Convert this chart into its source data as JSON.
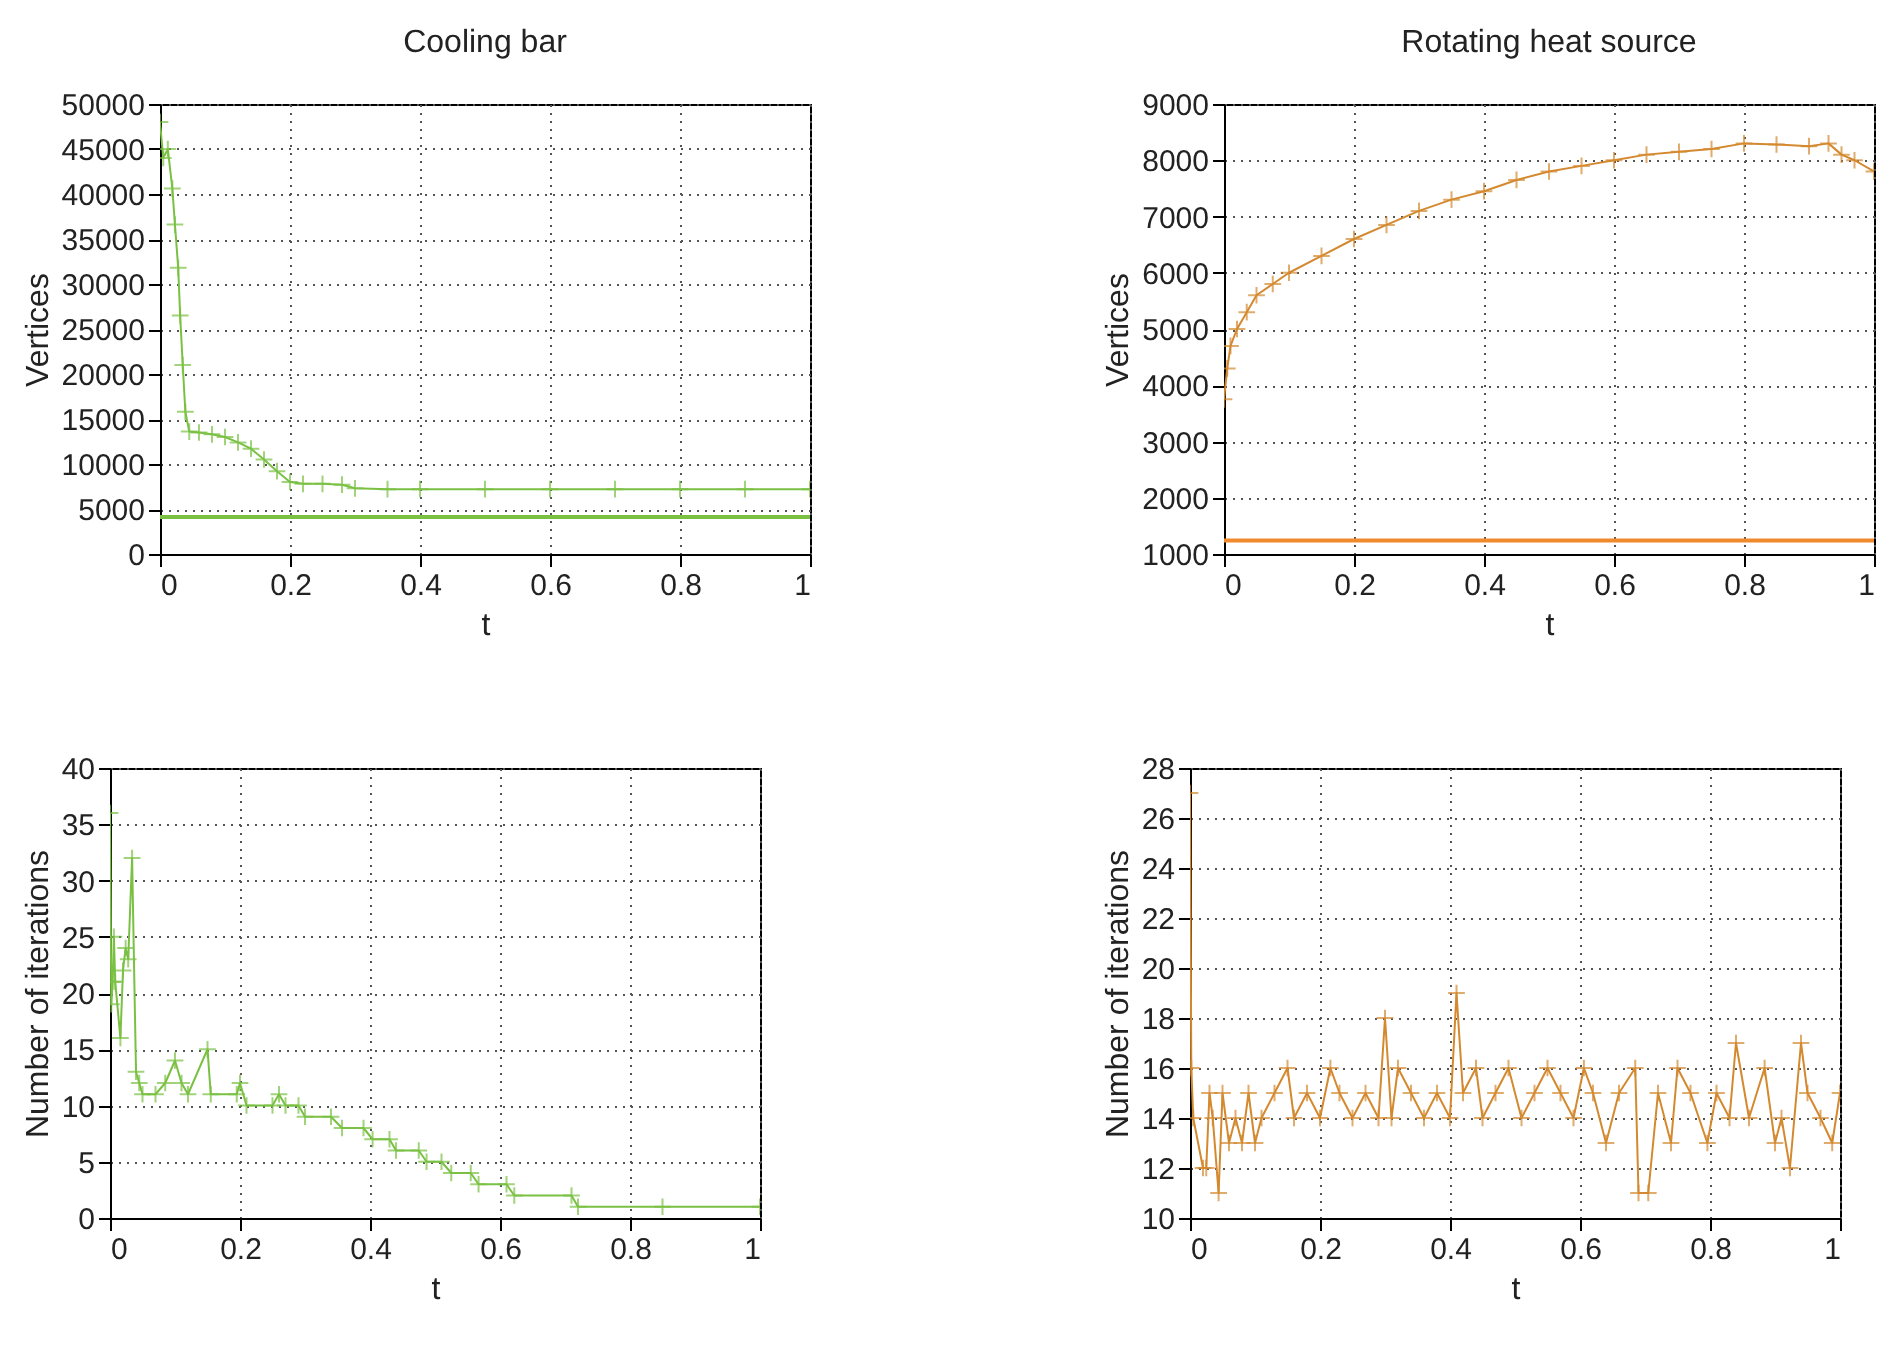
{
  "chart_data": [
    {
      "type": "line",
      "title": "Cooling bar",
      "xlabel": "t",
      "ylabel": "Vertices",
      "marker": "cross",
      "grid": true,
      "x": [
        0,
        0.005,
        0.012,
        0.019,
        0.023,
        0.028,
        0.031,
        0.035,
        0.039,
        0.045,
        0.06,
        0.08,
        0.1,
        0.12,
        0.14,
        0.16,
        0.18,
        0.2,
        0.22,
        0.25,
        0.28,
        0.3,
        0.35,
        0.4,
        0.5,
        0.6,
        0.7,
        0.8,
        0.9,
        1
      ],
      "series": [
        {
          "color": "#7ac143",
          "values": [
            48000,
            44000,
            45000,
            40600,
            36600,
            31800,
            26500,
            21000,
            15800,
            13600,
            13500,
            13300,
            13000,
            12400,
            11700,
            10500,
            9200,
            8000,
            7800,
            7800,
            7700,
            7300,
            7200,
            7200,
            7200,
            7200,
            7200,
            7200,
            7200,
            7200
          ]
        }
      ],
      "ref_lines": [
        {
          "axis": "y",
          "value": 4100,
          "color": "#7ac143"
        }
      ],
      "xlim": [
        0,
        1
      ],
      "xticks": [
        0,
        0.2,
        0.4,
        0.6,
        0.8,
        1
      ],
      "ylim": [
        0,
        50000
      ],
      "yticks": [
        0,
        5000,
        10000,
        15000,
        20000,
        25000,
        30000,
        35000,
        40000,
        45000,
        50000
      ]
    },
    {
      "type": "line",
      "title": "Rotating heat source",
      "xlabel": "t",
      "ylabel": "Vertices",
      "marker": "cross",
      "grid": true,
      "x": [
        0,
        0.005,
        0.01,
        0.02,
        0.035,
        0.05,
        0.075,
        0.1,
        0.15,
        0.2,
        0.25,
        0.3,
        0.35,
        0.4,
        0.45,
        0.5,
        0.55,
        0.6,
        0.65,
        0.7,
        0.75,
        0.8,
        0.85,
        0.9,
        0.93,
        0.95,
        0.97,
        1
      ],
      "series": [
        {
          "color": "#d4892f",
          "values": [
            3750,
            4300,
            4700,
            5000,
            5300,
            5600,
            5800,
            6000,
            6300,
            6600,
            6850,
            7100,
            7300,
            7450,
            7650,
            7800,
            7900,
            8000,
            8100,
            8150,
            8200,
            8300,
            8280,
            8250,
            8300,
            8100,
            8000,
            7800
          ]
        }
      ],
      "ref_lines": [
        {
          "axis": "y",
          "value": 1240,
          "color": "#f08a2c"
        }
      ],
      "xlim": [
        0,
        1
      ],
      "xticks": [
        0,
        0.2,
        0.4,
        0.6,
        0.8,
        1
      ],
      "ylim": [
        1000,
        9000
      ],
      "yticks": [
        1000,
        2000,
        3000,
        4000,
        5000,
        6000,
        7000,
        8000,
        9000
      ]
    },
    {
      "type": "line",
      "xlabel": "t",
      "ylabel": "Number of iterations",
      "marker": "cross",
      "grid": true,
      "x": [
        0,
        0.002,
        0.004,
        0.006,
        0.008,
        0.016,
        0.02,
        0.024,
        0.028,
        0.034,
        0.04,
        0.045,
        0.05,
        0.07,
        0.085,
        0.1,
        0.11,
        0.12,
        0.15,
        0.155,
        0.195,
        0.2,
        0.21,
        0.25,
        0.26,
        0.27,
        0.29,
        0.3,
        0.34,
        0.357,
        0.39,
        0.404,
        0.43,
        0.44,
        0.475,
        0.487,
        0.51,
        0.525,
        0.555,
        0.567,
        0.61,
        0.622,
        0.71,
        0.72,
        0.85,
        1
      ],
      "series": [
        {
          "color": "#7ac143",
          "values": [
            36,
            19,
            21,
            25,
            21,
            16,
            22,
            24,
            23,
            32,
            13,
            12,
            11,
            11,
            12,
            14,
            12,
            11,
            15,
            11,
            11,
            12,
            10,
            10,
            11,
            10,
            10,
            9,
            9,
            8,
            8,
            7,
            7,
            6,
            6,
            5,
            5,
            4,
            4,
            3,
            3,
            2,
            2,
            1,
            1,
            1
          ]
        }
      ],
      "xlim": [
        0,
        1
      ],
      "xticks": [
        0,
        0.2,
        0.4,
        0.6,
        0.8,
        1
      ],
      "ylim": [
        0,
        40
      ],
      "yticks": [
        0,
        5,
        10,
        15,
        20,
        25,
        30,
        35,
        40
      ]
    },
    {
      "type": "line",
      "xlabel": "t",
      "ylabel": "Number of iterations",
      "marker": "cross",
      "grid": true,
      "x": [
        0,
        0.002,
        0.005,
        0.02,
        0.025,
        0.03,
        0.035,
        0.044,
        0.05,
        0.06,
        0.07,
        0.08,
        0.09,
        0.1,
        0.11,
        0.13,
        0.15,
        0.16,
        0.18,
        0.2,
        0.216,
        0.23,
        0.25,
        0.27,
        0.29,
        0.3,
        0.31,
        0.32,
        0.34,
        0.36,
        0.38,
        0.4,
        0.41,
        0.42,
        0.44,
        0.45,
        0.47,
        0.49,
        0.51,
        0.53,
        0.55,
        0.57,
        0.59,
        0.606,
        0.62,
        0.64,
        0.66,
        0.685,
        0.69,
        0.705,
        0.72,
        0.74,
        0.75,
        0.77,
        0.796,
        0.81,
        0.83,
        0.84,
        0.86,
        0.884,
        0.9,
        0.91,
        0.923,
        0.94,
        0.95,
        0.97,
        0.988,
        1
      ],
      "series": [
        {
          "color": "#d4892f",
          "values": [
            27,
            16,
            14,
            12,
            12,
            15,
            14,
            11,
            15,
            13,
            14,
            13,
            15,
            13,
            14,
            15,
            16,
            14,
            15,
            14,
            16,
            15,
            14,
            15,
            14,
            18,
            14,
            16,
            15,
            14,
            15,
            14,
            19,
            15,
            16,
            14,
            15,
            16,
            14,
            15,
            16,
            15,
            14,
            16,
            15,
            13,
            15,
            16,
            11,
            11,
            15,
            13,
            16,
            15,
            13,
            15,
            14,
            17,
            14,
            16,
            13,
            14,
            12,
            17,
            15,
            14,
            13,
            15
          ]
        }
      ],
      "xlim": [
        0,
        1
      ],
      "xticks": [
        0,
        0.2,
        0.4,
        0.6,
        0.8,
        1
      ],
      "ylim": [
        10,
        28
      ],
      "yticks": [
        10,
        12,
        14,
        16,
        18,
        20,
        22,
        24,
        26,
        28
      ]
    }
  ]
}
